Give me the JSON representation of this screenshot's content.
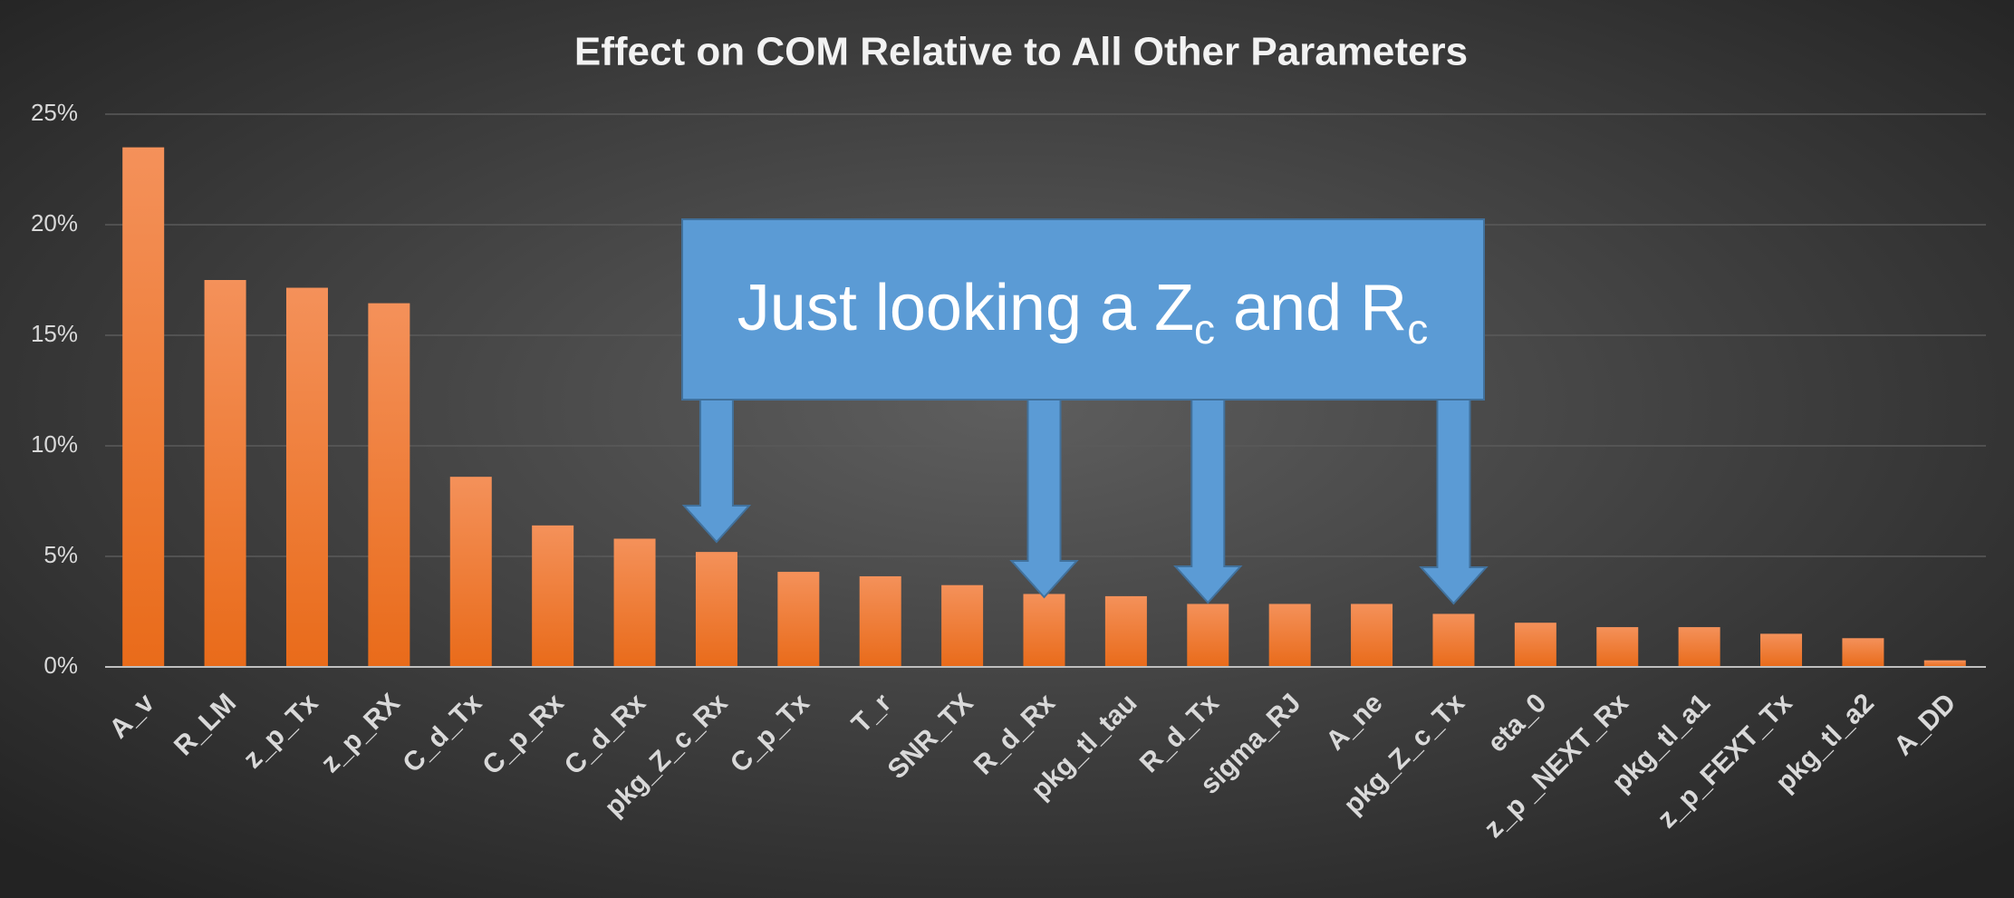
{
  "chart_data": {
    "type": "bar",
    "title": "Effect on COM Relative to All Other Parameters",
    "categories": [
      "A_v",
      "R_LM",
      "z_p_Tx",
      "z_p_RX",
      "C_d_Tx",
      "C_p_Rx",
      "C_d_Rx",
      "pkg_Z_c_Rx",
      "C_p_Tx",
      "T_r",
      "SNR_TX",
      "R_d_Rx",
      "pkg_tl_tau",
      "R_d_Tx",
      "sigma_RJ",
      "A_ne",
      "pkg_Z_c_Tx",
      "eta_0",
      "z_p _NEXT_Rx",
      "pkg_tl_a1",
      "z_p_FEXT_Tx",
      "pkg_tl_a2",
      "A_DD"
    ],
    "values": [
      23.5,
      17.5,
      17.15,
      16.45,
      8.6,
      6.4,
      5.8,
      5.2,
      4.3,
      4.1,
      3.7,
      3.3,
      3.2,
      2.85,
      2.85,
      2.85,
      2.4,
      2.0,
      1.8,
      1.8,
      1.5,
      1.3,
      0.3
    ],
    "color": "#f07f2a",
    "ylim": [
      0,
      25
    ],
    "yticks": [
      {
        "value": 0,
        "label": "0%"
      },
      {
        "value": 5,
        "label": "5%"
      },
      {
        "value": 10,
        "label": "10%"
      },
      {
        "value": 15,
        "label": "15%"
      },
      {
        "value": 20,
        "label": "20%"
      },
      {
        "value": 25,
        "label": "25%"
      }
    ],
    "grid": true,
    "annotation": [
      "Just looking a Z",
      "c",
      " and R",
      "c"
    ]
  }
}
